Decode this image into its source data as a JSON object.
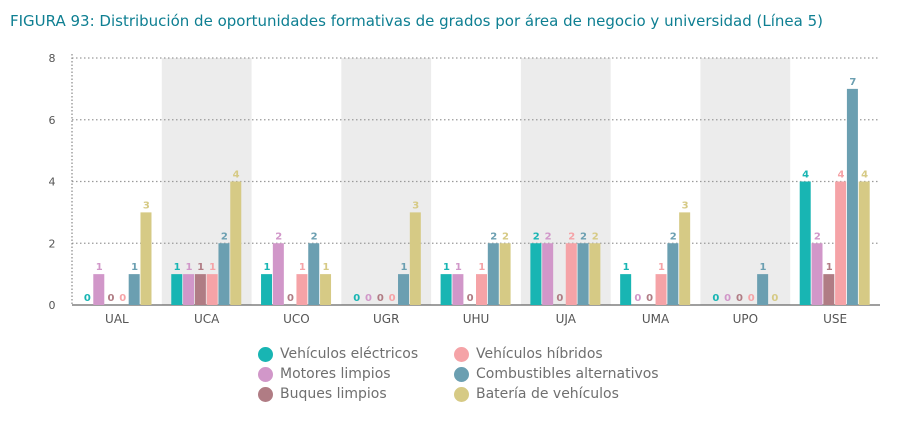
{
  "title": "FIGURA 93: Distribución de oportunidades formativas de grados por área de negocio y universidad (Línea 5)",
  "chart_data": {
    "type": "bar",
    "categories": [
      "UAL",
      "UCA",
      "UCO",
      "UGR",
      "UHU",
      "UJA",
      "UMA",
      "UPO",
      "USE"
    ],
    "ylim": [
      0,
      8
    ],
    "yticks": [
      "0",
      "2",
      "4",
      "6",
      "8"
    ],
    "grid": true,
    "legend_position": "bottom",
    "series": [
      {
        "name": "Vehículos eléctricos",
        "color": "#18b5b3",
        "values": [
          0,
          1,
          1,
          0,
          1,
          2,
          1,
          0,
          4
        ],
        "labels": [
          "0",
          "1",
          "1",
          "0",
          "1",
          "2",
          "1",
          "0",
          "4"
        ]
      },
      {
        "name": "Motores limpios",
        "color": "#d197c9",
        "values": [
          1,
          1,
          2,
          0,
          1,
          2,
          0,
          0,
          2
        ],
        "labels": [
          "1",
          "1",
          "2",
          "0",
          "1",
          "2",
          "0",
          "0",
          "2"
        ]
      },
      {
        "name": "Buques limpios",
        "color": "#b07c84",
        "values": [
          0,
          1,
          0,
          0,
          0,
          0,
          0,
          0,
          1
        ],
        "labels": [
          "0",
          "1",
          "0",
          "0",
          "0",
          "0",
          "0",
          "0",
          "1"
        ]
      },
      {
        "name": "Vehículos híbridos",
        "color": "#f5a3a7",
        "values": [
          0,
          1,
          1,
          0,
          1,
          2,
          1,
          0,
          4
        ],
        "labels": [
          "0",
          "1",
          "1",
          "0",
          "1",
          "2",
          "1",
          "0",
          "4"
        ]
      },
      {
        "name": "Combustibles alternativos",
        "color": "#6b9fb1",
        "values": [
          1,
          2,
          2,
          1,
          2,
          2,
          2,
          1,
          7
        ],
        "labels": [
          "1",
          "2",
          "2",
          "1",
          "2",
          "2",
          "2",
          "1",
          "7"
        ]
      },
      {
        "name": "Batería de vehículos",
        "color": "#d6ca85",
        "values": [
          3,
          4,
          1,
          3,
          2,
          2,
          3,
          0,
          4
        ],
        "labels": [
          "3",
          "4",
          "1",
          "3",
          "2",
          "2",
          "3",
          "0",
          "4"
        ]
      }
    ]
  },
  "legend": [
    {
      "label": "Vehículos eléctricos",
      "color": "#18b5b3"
    },
    {
      "label": "Vehículos híbridos",
      "color": "#f5a3a7"
    },
    {
      "label": "Motores limpios",
      "color": "#d197c9"
    },
    {
      "label": "Combustibles alternativos",
      "color": "#6b9fb1"
    },
    {
      "label": "Buques limpios",
      "color": "#b07c84"
    },
    {
      "label": "Batería de vehículos",
      "color": "#d6ca85"
    }
  ]
}
